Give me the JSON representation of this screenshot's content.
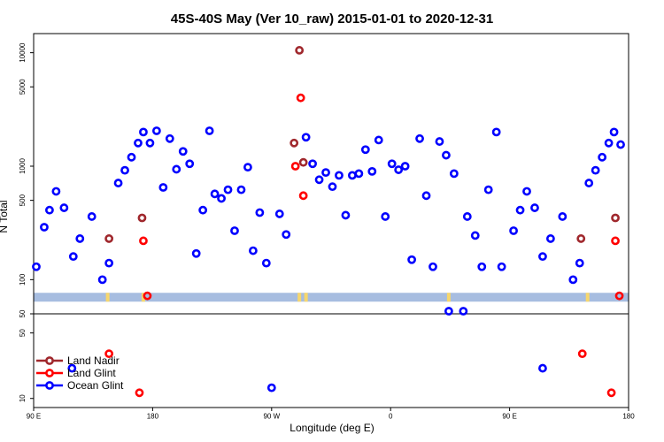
{
  "chart_data": {
    "type": "scatter",
    "title": "45S-40S May (Ver 10_raw)   2015-01-01 to 2020-12-31",
    "xlabel": "Longitude (deg E)",
    "ylabel": "N Total",
    "x_ticks": [
      {
        "value": 90,
        "label": "90 E"
      },
      {
        "value": 180,
        "label": "180"
      },
      {
        "value": 270,
        "label": "90 W"
      },
      {
        "value": 360,
        "label": "0"
      },
      {
        "value": 450,
        "label": "90 E"
      },
      {
        "value": 540,
        "label": "180"
      }
    ],
    "xlim": [
      90,
      540
    ],
    "y_upper": {
      "scale": "log",
      "ylim": [
        50,
        13000
      ],
      "ticks": [
        100,
        500,
        1000,
        5000,
        10000
      ],
      "bottom_label": "50"
    },
    "y_lower": {
      "scale": "log",
      "ylim": [
        8,
        80
      ],
      "ticks": [
        10,
        50
      ]
    },
    "band": {
      "y": 70,
      "color": "#a7bde0",
      "highlight_color": "#f7d76d",
      "highlights_x": [
        146,
        173,
        291,
        296,
        404,
        509
      ]
    },
    "legend": {
      "position": "bottom-left",
      "entries": [
        "Land Nadir",
        "Land Glint",
        "Ocean Glint"
      ]
    },
    "series": [
      {
        "name": "Land Nadir",
        "color": "#a0282d",
        "panel": "upper",
        "points": [
          [
            147,
            230
          ],
          [
            172,
            350
          ],
          [
            287,
            1600
          ],
          [
            291,
            10500
          ],
          [
            294,
            1080
          ],
          [
            504,
            230
          ],
          [
            530,
            350
          ]
        ]
      },
      {
        "name": "Land Glint",
        "color": "#ff0000",
        "panel": "upper",
        "points": [
          [
            173,
            220
          ],
          [
            176,
            72
          ],
          [
            288,
            1000
          ],
          [
            292,
            4000
          ],
          [
            294,
            550
          ],
          [
            530,
            220
          ],
          [
            533,
            72
          ]
        ]
      },
      {
        "name": "Land Glint",
        "color": "#ff0000",
        "panel": "lower",
        "points": [
          [
            147,
            30
          ],
          [
            170,
            11.5
          ],
          [
            505,
            30
          ],
          [
            527,
            11.5
          ]
        ]
      },
      {
        "name": "Ocean Glint",
        "color": "#0000ff",
        "panel": "upper",
        "points": [
          [
            92,
            130
          ],
          [
            98,
            290
          ],
          [
            102,
            410
          ],
          [
            107,
            600
          ],
          [
            113,
            430
          ],
          [
            120,
            160
          ],
          [
            125,
            230
          ],
          [
            134,
            360
          ],
          [
            142,
            100
          ],
          [
            147,
            140
          ],
          [
            154,
            710
          ],
          [
            159,
            920
          ],
          [
            164,
            1200
          ],
          [
            169,
            1600
          ],
          [
            173,
            2000
          ],
          [
            178,
            1600
          ],
          [
            183,
            2050
          ],
          [
            188,
            650
          ],
          [
            193,
            1750
          ],
          [
            198,
            940
          ],
          [
            203,
            1350
          ],
          [
            208,
            1050
          ],
          [
            213,
            170
          ],
          [
            218,
            410
          ],
          [
            223,
            2050
          ],
          [
            227,
            570
          ],
          [
            232,
            520
          ],
          [
            237,
            620
          ],
          [
            242,
            270
          ],
          [
            247,
            620
          ],
          [
            252,
            980
          ],
          [
            256,
            180
          ],
          [
            261,
            390
          ],
          [
            266,
            140
          ],
          [
            276,
            380
          ],
          [
            281,
            250
          ],
          [
            296,
            1800
          ],
          [
            301,
            1050
          ],
          [
            306,
            760
          ],
          [
            311,
            880
          ],
          [
            316,
            660
          ],
          [
            321,
            830
          ],
          [
            326,
            370
          ],
          [
            331,
            830
          ],
          [
            336,
            860
          ],
          [
            341,
            1400
          ],
          [
            346,
            900
          ],
          [
            351,
            1700
          ],
          [
            356,
            360
          ],
          [
            361,
            1050
          ],
          [
            366,
            930
          ],
          [
            371,
            1000
          ],
          [
            376,
            150
          ],
          [
            382,
            1750
          ],
          [
            387,
            550
          ],
          [
            392,
            130
          ],
          [
            397,
            1650
          ],
          [
            402,
            1250
          ],
          [
            408,
            860
          ],
          [
            418,
            360
          ],
          [
            424,
            245
          ],
          [
            429,
            130
          ],
          [
            434,
            620
          ],
          [
            440,
            2000
          ],
          [
            444,
            130
          ],
          [
            453,
            270
          ],
          [
            458,
            410
          ],
          [
            463,
            600
          ],
          [
            469,
            430
          ],
          [
            475,
            160
          ],
          [
            481,
            230
          ],
          [
            490,
            360
          ],
          [
            498,
            100
          ],
          [
            503,
            140
          ],
          [
            510,
            710
          ],
          [
            515,
            920
          ],
          [
            520,
            1200
          ],
          [
            525,
            1600
          ],
          [
            529,
            2000
          ],
          [
            534,
            1550
          ]
        ]
      },
      {
        "name": "Ocean Glint",
        "color": "#0000ff",
        "panel": "middle",
        "points": [
          [
            404,
            53
          ],
          [
            415,
            53
          ]
        ]
      },
      {
        "name": "Ocean Glint",
        "color": "#0000ff",
        "panel": "lower",
        "points": [
          [
            119,
            21
          ],
          [
            270,
            13
          ],
          [
            475,
            21
          ]
        ]
      }
    ]
  }
}
